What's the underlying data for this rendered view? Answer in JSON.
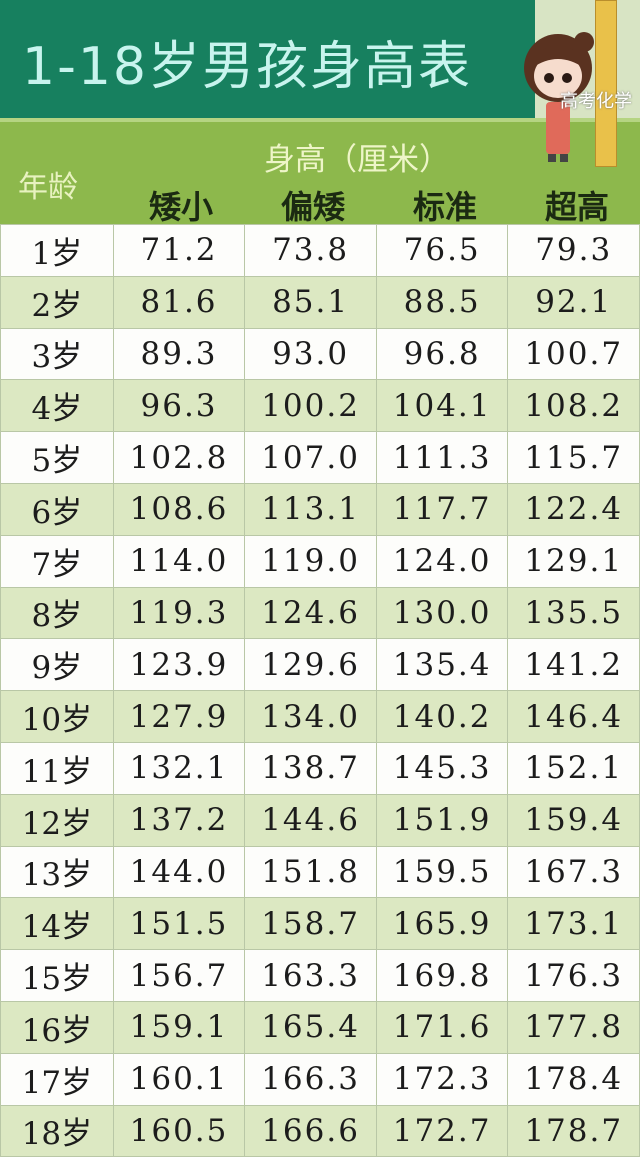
{
  "title": "1-18岁男孩身高表",
  "header": {
    "age_label": "年龄",
    "unit_label": "身高（厘米）",
    "columns": [
      "矮小",
      "偏矮",
      "标准",
      "超高"
    ]
  },
  "rows": [
    {
      "age": "1岁",
      "values": [
        "71.2",
        "73.8",
        "76.5",
        "79.3"
      ]
    },
    {
      "age": "2岁",
      "values": [
        "81.6",
        "85.1",
        "88.5",
        "92.1"
      ]
    },
    {
      "age": "3岁",
      "values": [
        "89.3",
        "93.0",
        "96.8",
        "100.7"
      ]
    },
    {
      "age": "4岁",
      "values": [
        "96.3",
        "100.2",
        "104.1",
        "108.2"
      ]
    },
    {
      "age": "5岁",
      "values": [
        "102.8",
        "107.0",
        "111.3",
        "115.7"
      ]
    },
    {
      "age": "6岁",
      "values": [
        "108.6",
        "113.1",
        "117.7",
        "122.4"
      ]
    },
    {
      "age": "7岁",
      "values": [
        "114.0",
        "119.0",
        "124.0",
        "129.1"
      ]
    },
    {
      "age": "8岁",
      "values": [
        "119.3",
        "124.6",
        "130.0",
        "135.5"
      ]
    },
    {
      "age": "9岁",
      "values": [
        "123.9",
        "129.6",
        "135.4",
        "141.2"
      ]
    },
    {
      "age": "10岁",
      "values": [
        "127.9",
        "134.0",
        "140.2",
        "146.4"
      ]
    },
    {
      "age": "11岁",
      "values": [
        "132.1",
        "138.7",
        "145.3",
        "152.1"
      ]
    },
    {
      "age": "12岁",
      "values": [
        "137.2",
        "144.6",
        "151.9",
        "159.4"
      ]
    },
    {
      "age": "13岁",
      "values": [
        "144.0",
        "151.8",
        "159.5",
        "167.3"
      ]
    },
    {
      "age": "14岁",
      "values": [
        "151.5",
        "158.7",
        "165.9",
        "173.1"
      ]
    },
    {
      "age": "15岁",
      "values": [
        "156.7",
        "163.3",
        "169.8",
        "176.3"
      ]
    },
    {
      "age": "16岁",
      "values": [
        "159.1",
        "165.4",
        "171.6",
        "177.8"
      ]
    },
    {
      "age": "17岁",
      "values": [
        "160.1",
        "166.3",
        "172.3",
        "178.4"
      ]
    },
    {
      "age": "18岁",
      "values": [
        "160.5",
        "166.6",
        "172.7",
        "178.7"
      ]
    }
  ],
  "watermark": "高考化学",
  "colors": {
    "title_band": "#17805f",
    "header": "#8db84c",
    "row_alt": "#dce8c2"
  }
}
